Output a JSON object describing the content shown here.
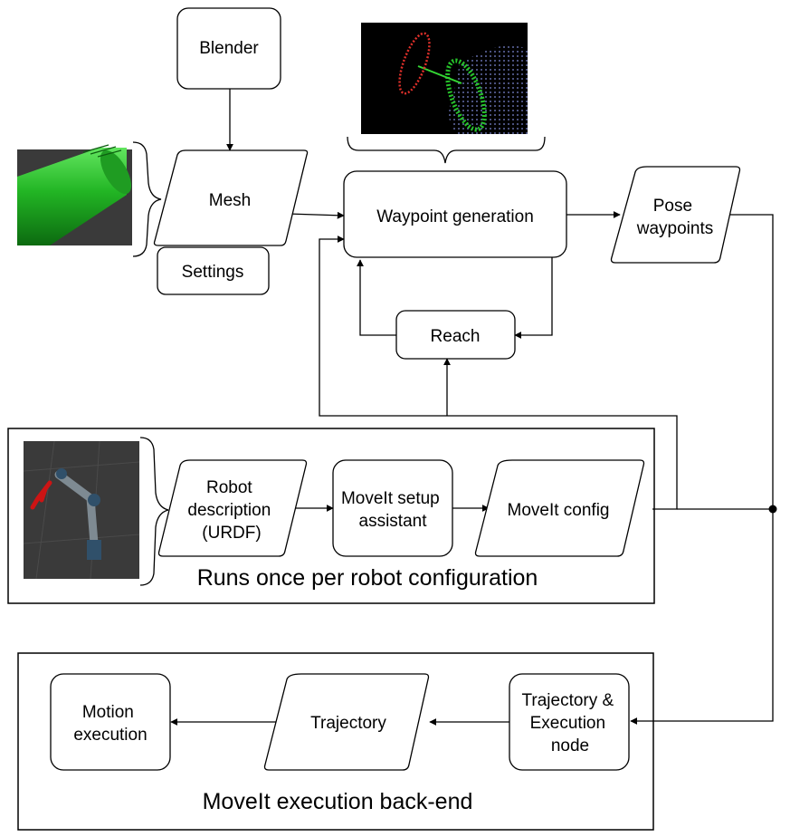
{
  "nodes": {
    "blender": "Blender",
    "mesh": "Mesh",
    "settings": "Settings",
    "waypoint_generation": "Waypoint generation",
    "pose_waypoints": [
      "Pose",
      "waypoints"
    ],
    "reach": "Reach",
    "robot_description": [
      "Robot",
      "description",
      "(URDF)"
    ],
    "moveit_setup": [
      "MoveIt setup",
      "assistant"
    ],
    "moveit_config": "MoveIt config",
    "motion_execution": [
      "Motion",
      "execution"
    ],
    "trajectory": "Trajectory",
    "trajectory_execution_node": [
      "Trajectory &",
      "Execution",
      "node"
    ]
  },
  "groups": {
    "robot_config_label": "Runs once per robot configuration",
    "execution_backend_label": "MoveIt execution back-end"
  },
  "images": {
    "mesh_render": "green cylinder mesh render",
    "waypoint_render": "waypoint visualization render",
    "robot_render": "robot arm render"
  },
  "colors": {
    "line": "#000000",
    "mesh_green": "#27c22a",
    "render_bg": "#3a3a3a",
    "waypoint_red": "#e0302a",
    "gripper_red": "#cc1414"
  }
}
